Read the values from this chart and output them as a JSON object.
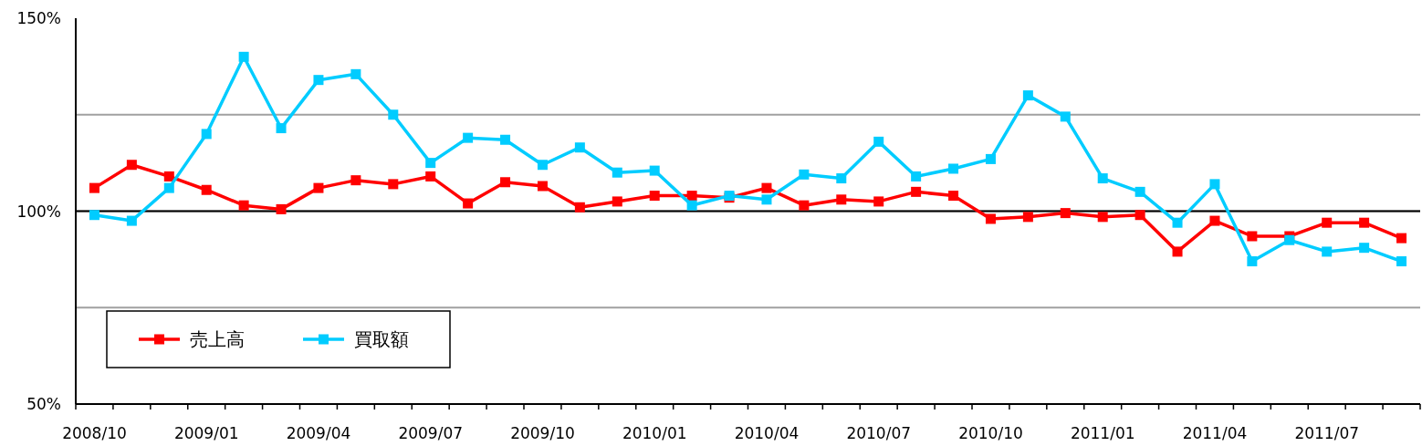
{
  "chart_data": {
    "type": "line",
    "categories": [
      "2008/10",
      null,
      null,
      "2009/01",
      null,
      null,
      "2009/04",
      null,
      null,
      "2009/07",
      null,
      null,
      "2009/10",
      null,
      null,
      "2010/01",
      null,
      null,
      "2010/04",
      null,
      null,
      "2010/07",
      null,
      null,
      "2010/10",
      null,
      null,
      "2011/01",
      null,
      null,
      "2011/04",
      null,
      null,
      "2011/07",
      null,
      null
    ],
    "series": [
      {
        "name": "売上高",
        "color": "#ff0000",
        "values": [
          106,
          112,
          109,
          105.5,
          101.5,
          100.5,
          106,
          108,
          107,
          109,
          102,
          107.5,
          106.5,
          101,
          102.5,
          104,
          104,
          103.5,
          106,
          101.5,
          103,
          102.5,
          105,
          104,
          98,
          98.5,
          99.5,
          98.5,
          99,
          89.5,
          97.5,
          93.5,
          93.5,
          97,
          97,
          93
        ]
      },
      {
        "name": "買取額",
        "color": "#00ccff",
        "values": [
          99,
          97.5,
          106,
          120,
          140,
          121.5,
          134,
          135.5,
          125,
          112.5,
          119,
          118.5,
          112,
          116.5,
          110,
          110.5,
          101.5,
          104,
          103,
          109.5,
          108.5,
          118,
          109,
          111,
          113.5,
          130,
          124.5,
          108.5,
          105,
          97,
          107,
          87,
          92.5,
          89.5,
          90.5,
          87
        ]
      }
    ],
    "ylim": [
      50,
      150
    ],
    "yticks": [
      {
        "value": 50,
        "label": "50%"
      },
      {
        "value": 75,
        "label": null
      },
      {
        "value": 100,
        "label": "100%"
      },
      {
        "value": 125,
        "label": null
      },
      {
        "value": 150,
        "label": "150%"
      }
    ],
    "grid": "y",
    "ref_lines": [
      {
        "axis": "y",
        "value": 100,
        "color": "#000000"
      }
    ],
    "legend": "bottom left",
    "marker": "square",
    "line_style": "solid"
  }
}
